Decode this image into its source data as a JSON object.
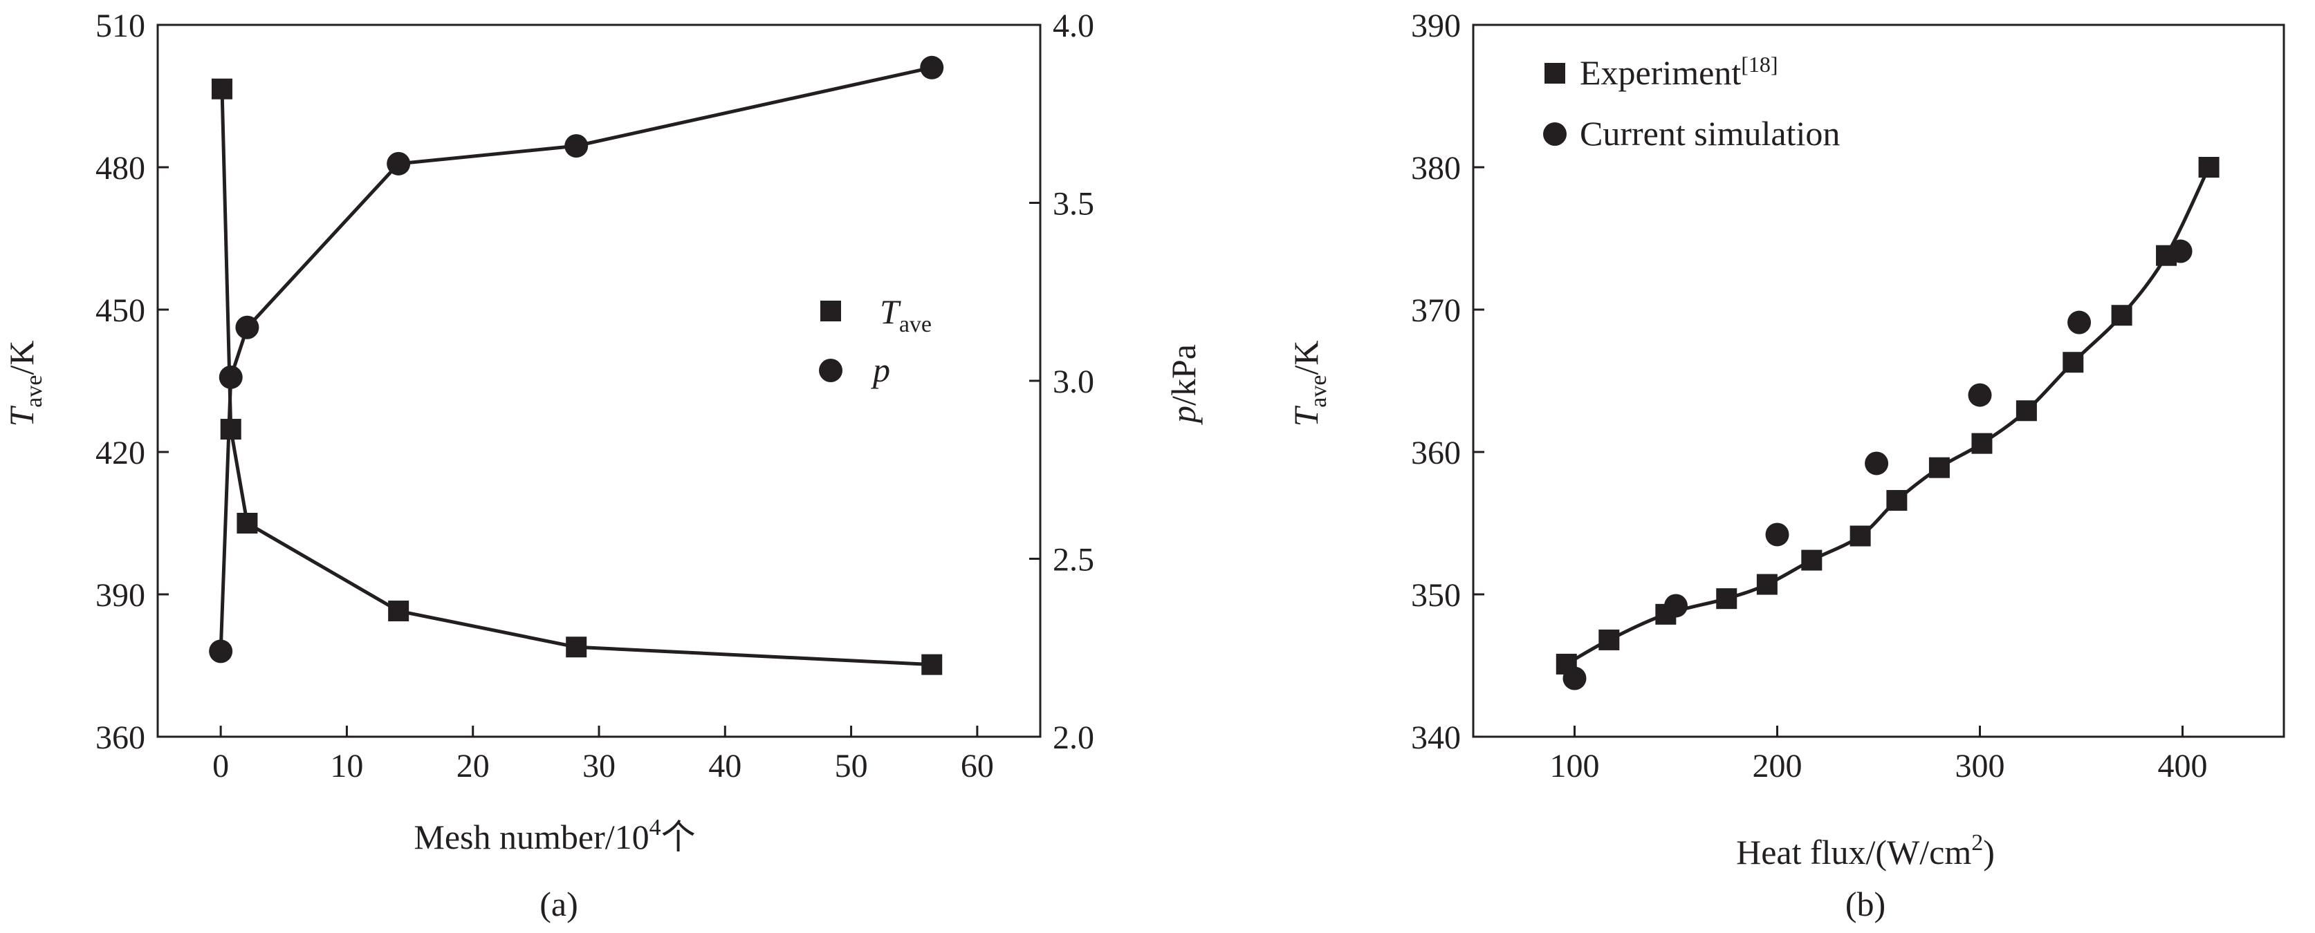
{
  "chart_data": [
    {
      "type": "line",
      "panel_label": "(a)",
      "xlabel": "Mesh number/10",
      "xlabel_sup": "4",
      "xlabel_unit": "个",
      "ylabel_var": "T",
      "ylabel_sub": "ave",
      "ylabel_unit": "/K",
      "y2label_var": "p",
      "y2label_unit": "/kPa",
      "xlim": [
        -5,
        65
      ],
      "ylim": [
        360,
        510
      ],
      "y2lim": [
        2.0,
        4.0
      ],
      "x_ticks": [
        "0",
        "10",
        "20",
        "30",
        "40",
        "50",
        "60"
      ],
      "y_ticks": [
        "360",
        "390",
        "420",
        "450",
        "480",
        "510"
      ],
      "y2_ticks": [
        "2.0",
        "2.5",
        "3.0",
        "3.5",
        "4.0"
      ],
      "legend_position": "center-right",
      "series": [
        {
          "name_var": "T",
          "name_sub": "ave",
          "marker": "square",
          "axis": "left",
          "x": [
            0.1,
            0.8,
            2.1,
            14.1,
            28.2,
            56.4
          ],
          "y": [
            496.5,
            424.8,
            405.0,
            386.5,
            378.9,
            375.2
          ]
        },
        {
          "name_var": "p",
          "name_sub": "",
          "marker": "circle",
          "axis": "right",
          "x": [
            0.0,
            0.8,
            2.1,
            14.1,
            28.2,
            56.4
          ],
          "y": [
            2.24,
            3.01,
            3.15,
            3.61,
            3.66,
            3.88
          ]
        }
      ]
    },
    {
      "type": "scatter",
      "panel_label": "(b)",
      "xlabel": "Heat flux/(W/cm",
      "xlabel_sup": "2",
      "xlabel_unit": ")",
      "ylabel_var": "T",
      "ylabel_sub": "ave",
      "ylabel_unit": "/K",
      "xlim": [
        50,
        450
      ],
      "ylim": [
        340,
        390
      ],
      "x_ticks": [
        "100",
        "200",
        "300",
        "400"
      ],
      "y_ticks": [
        "340",
        "350",
        "360",
        "370",
        "380",
        "390"
      ],
      "legend_position": "top-left",
      "series": [
        {
          "name": "Experiment",
          "name_sup": "[18]",
          "marker": "square",
          "x": [
            96,
            117,
            145,
            175,
            195,
            217,
            241,
            259,
            280,
            301,
            323,
            346,
            370,
            392,
            413
          ],
          "y": [
            345.1,
            346.8,
            348.6,
            349.7,
            350.7,
            352.4,
            354.1,
            356.6,
            358.9,
            360.6,
            362.9,
            366.3,
            369.6,
            373.8,
            380.0
          ]
        },
        {
          "name": "Current simulation",
          "marker": "circle",
          "x": [
            100,
            150,
            200,
            249,
            300,
            349,
            399
          ],
          "y": [
            344.1,
            349.2,
            354.2,
            359.2,
            364.0,
            369.1,
            374.1
          ]
        }
      ]
    }
  ]
}
